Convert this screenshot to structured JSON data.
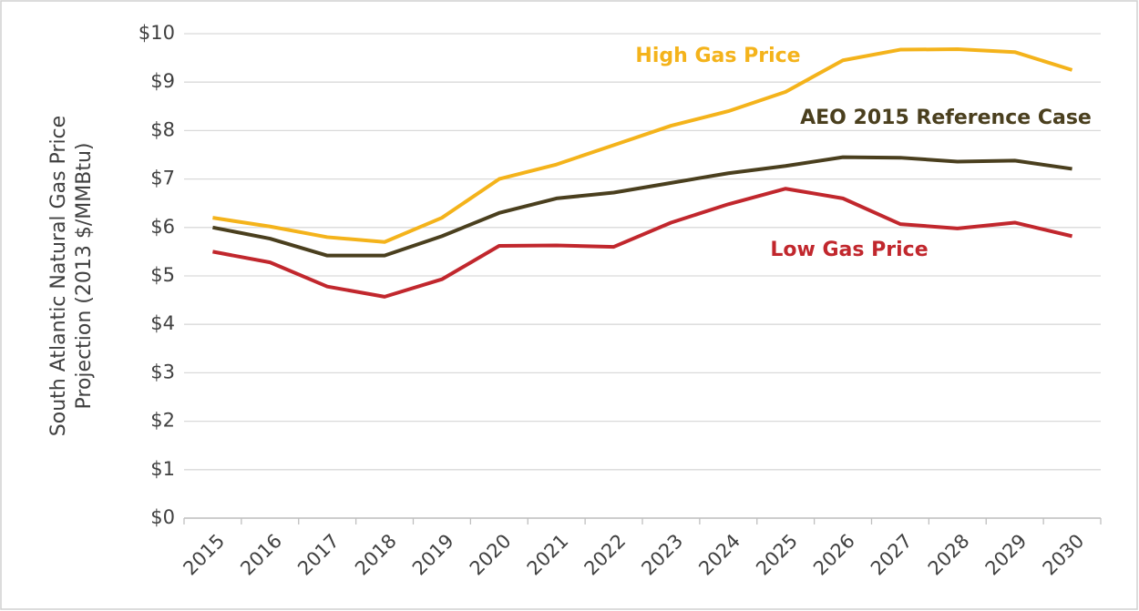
{
  "chart_data": {
    "type": "line",
    "ylabel": [
      "South Atlantic Natural Gas Price",
      "Projection (2013 $/MMBtu)"
    ],
    "categories": [
      "2015",
      "2016",
      "2017",
      "2018",
      "2019",
      "2020",
      "2021",
      "2022",
      "2023",
      "2024",
      "2025",
      "2026",
      "2027",
      "2028",
      "2029",
      "2030"
    ],
    "series": [
      {
        "name": "High Gas Price",
        "color": "#f4b31b",
        "values": [
          6.2,
          6.02,
          5.8,
          5.7,
          6.2,
          7.0,
          7.3,
          7.7,
          8.1,
          8.4,
          8.8,
          9.45,
          9.67,
          9.68,
          9.62,
          9.25
        ]
      },
      {
        "name": "AEO 2015 Reference Case",
        "color": "#4a3f1e",
        "values": [
          6.0,
          5.77,
          5.42,
          5.42,
          5.82,
          6.3,
          6.6,
          6.72,
          6.92,
          7.12,
          7.27,
          7.45,
          7.44,
          7.36,
          7.38,
          7.21
        ]
      },
      {
        "name": "Low Gas Price",
        "color": "#c1272d",
        "values": [
          5.5,
          5.28,
          4.78,
          4.57,
          4.93,
          5.62,
          5.63,
          5.6,
          6.1,
          6.48,
          6.8,
          6.6,
          6.07,
          5.98,
          6.1,
          5.82
        ]
      }
    ],
    "ylim": [
      0,
      10
    ],
    "yticks": [
      {
        "value": 0,
        "label": "$0"
      },
      {
        "value": 1,
        "label": "$1"
      },
      {
        "value": 2,
        "label": "$2"
      },
      {
        "value": 3,
        "label": "$3"
      },
      {
        "value": 4,
        "label": "$4"
      },
      {
        "value": 5,
        "label": "$5"
      },
      {
        "value": 6,
        "label": "$6"
      },
      {
        "value": 7,
        "label": "$7"
      },
      {
        "value": 8,
        "label": "$8"
      },
      {
        "value": 9,
        "label": "$9"
      },
      {
        "value": 10,
        "label": "$10"
      }
    ],
    "grid": true
  }
}
